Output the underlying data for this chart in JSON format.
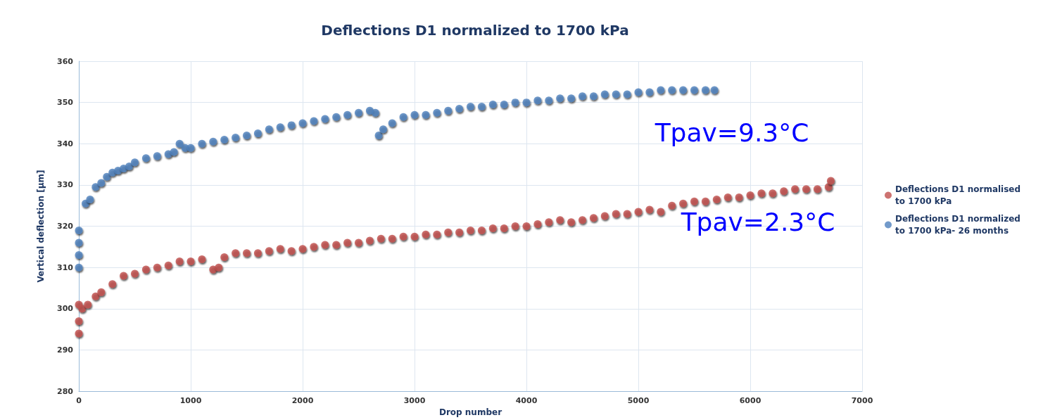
{
  "chart_data": {
    "type": "scatter",
    "title": "Deflections D1 normalized to 1700 kPa",
    "xlabel": "Drop number",
    "ylabel": "Vertical deflection [µm]",
    "xlim": [
      0,
      7000
    ],
    "xticks": [
      0,
      1000,
      2000,
      3000,
      4000,
      5000,
      6000,
      7000
    ],
    "ylim": [
      280,
      360
    ],
    "yticks": [
      280,
      290,
      300,
      310,
      320,
      330,
      340,
      350,
      360
    ],
    "grid": true,
    "legend": "right",
    "marker": "circle",
    "annotations": [
      "Tpav=9.3°C",
      "Tpav=2.3°C"
    ],
    "series": [
      {
        "name": "Deflections D1 normalised to 1700 kPa",
        "color": "#c0504d",
        "x": [
          0,
          0,
          0,
          30,
          80,
          150,
          200,
          300,
          400,
          500,
          600,
          700,
          800,
          900,
          1000,
          1100,
          1200,
          1250,
          1300,
          1400,
          1500,
          1600,
          1700,
          1800,
          1900,
          2000,
          2100,
          2200,
          2300,
          2400,
          2500,
          2600,
          2700,
          2800,
          2900,
          3000,
          3100,
          3200,
          3300,
          3400,
          3500,
          3600,
          3700,
          3800,
          3900,
          4000,
          4100,
          4200,
          4300,
          4400,
          4500,
          4600,
          4700,
          4800,
          4900,
          5000,
          5100,
          5200,
          5300,
          5400,
          5500,
          5600,
          5700,
          5800,
          5900,
          6000,
          6100,
          6200,
          6300,
          6400,
          6500,
          6600,
          6700,
          6720
        ],
        "values": [
          294,
          297,
          301,
          300,
          301,
          303,
          304,
          306,
          308,
          308.5,
          309.5,
          310,
          310.5,
          311.5,
          311.5,
          312,
          309.5,
          310,
          312.5,
          313.5,
          313.5,
          313.5,
          314,
          314.5,
          314,
          314.5,
          315,
          315.5,
          315.5,
          316,
          316,
          316.5,
          317,
          317,
          317.5,
          317.5,
          318,
          318,
          318.5,
          318.5,
          319,
          319,
          319.5,
          319.5,
          320,
          320,
          320.5,
          321,
          321.5,
          321,
          321.5,
          322,
          322.5,
          323,
          323,
          323.5,
          324,
          323.5,
          325,
          325.5,
          326,
          326,
          326.5,
          327,
          327,
          327.5,
          328,
          328,
          328.5,
          329,
          329,
          329,
          329.5,
          331
        ]
      },
      {
        "name": "Deflections D1 normalized to 1700 kPa- 26 months",
        "color": "#4f81bd",
        "x": [
          0,
          0,
          0,
          0,
          60,
          100,
          150,
          200,
          250,
          300,
          350,
          400,
          450,
          500,
          600,
          700,
          800,
          850,
          900,
          950,
          1000,
          1100,
          1200,
          1300,
          1400,
          1500,
          1600,
          1700,
          1800,
          1900,
          2000,
          2100,
          2200,
          2300,
          2400,
          2500,
          2600,
          2650,
          2680,
          2720,
          2800,
          2900,
          3000,
          3100,
          3200,
          3300,
          3400,
          3500,
          3600,
          3700,
          3800,
          3900,
          4000,
          4100,
          4200,
          4300,
          4400,
          4500,
          4600,
          4700,
          4800,
          4900,
          5000,
          5100,
          5200,
          5300,
          5400,
          5500,
          5600,
          5680
        ],
        "values": [
          310,
          313,
          316,
          319,
          325.5,
          326.5,
          329.5,
          330.5,
          332,
          333,
          333.5,
          334,
          334.5,
          335.5,
          336.5,
          337,
          337.5,
          338,
          340,
          339,
          339,
          340,
          340.5,
          341,
          341.5,
          342,
          342.5,
          343.5,
          344,
          344.5,
          345,
          345.5,
          346,
          346.5,
          347,
          347.5,
          348,
          347.5,
          342,
          343.5,
          345,
          346.5,
          347,
          347,
          347.5,
          348,
          348.5,
          349,
          349,
          349.5,
          349.5,
          350,
          350,
          350.5,
          350.5,
          351,
          351,
          351.5,
          351.5,
          352,
          352,
          352,
          352.5,
          352.5,
          353,
          353,
          353,
          353,
          353,
          353
        ]
      }
    ]
  }
}
